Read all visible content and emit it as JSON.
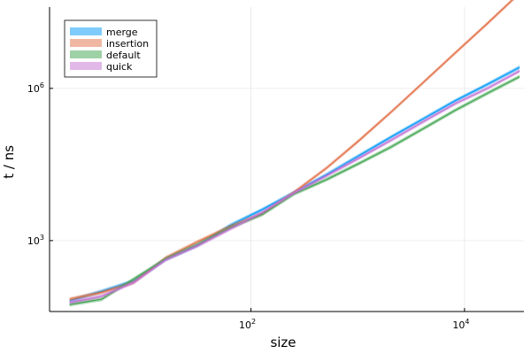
{
  "chart_data": {
    "type": "line",
    "xlabel": "size",
    "ylabel": "t / ns",
    "xscale": "log10",
    "yscale": "log10",
    "xlim": [
      1.3,
      36000
    ],
    "ylim": [
      40,
      40000000
    ],
    "grid": true,
    "legend_position": "top-left",
    "x_ticks": [
      {
        "base": "10",
        "exp": "2",
        "value": 100
      },
      {
        "base": "10",
        "exp": "4",
        "value": 10000
      }
    ],
    "y_ticks": [
      {
        "base": "10",
        "exp": "3",
        "value": 1000
      },
      {
        "base": "10",
        "exp": "6",
        "value": 1000000
      }
    ],
    "x": [
      2,
      4,
      8,
      16,
      32,
      64,
      128,
      256,
      512,
      1024,
      2048,
      4096,
      8192,
      16384,
      32768
    ],
    "series": [
      {
        "name": "merge",
        "color": "#009AFA",
        "values": [
          65,
          100,
          160,
          430,
          820,
          2000,
          4100,
          9000,
          20000,
          47000,
          110000,
          250000,
          570000,
          1200000,
          2600000
        ]
      },
      {
        "name": "insertion",
        "color": "#E26F46",
        "values": [
          70,
          95,
          150,
          460,
          960,
          1900,
          3400,
          9100,
          27000,
          93000,
          340000,
          1300000,
          5000000,
          19000000,
          75000000
        ]
      },
      {
        "name": "default",
        "color": "#3EA44E",
        "values": [
          55,
          70,
          175,
          440,
          840,
          1800,
          3300,
          8400,
          16000,
          33000,
          70000,
          160000,
          370000,
          800000,
          1700000
        ]
      },
      {
        "name": "quick",
        "color": "#C371D2",
        "values": [
          60,
          80,
          150,
          420,
          800,
          1700,
          3600,
          8800,
          19000,
          42000,
          95000,
          220000,
          500000,
          1000000,
          2200000
        ]
      }
    ]
  }
}
